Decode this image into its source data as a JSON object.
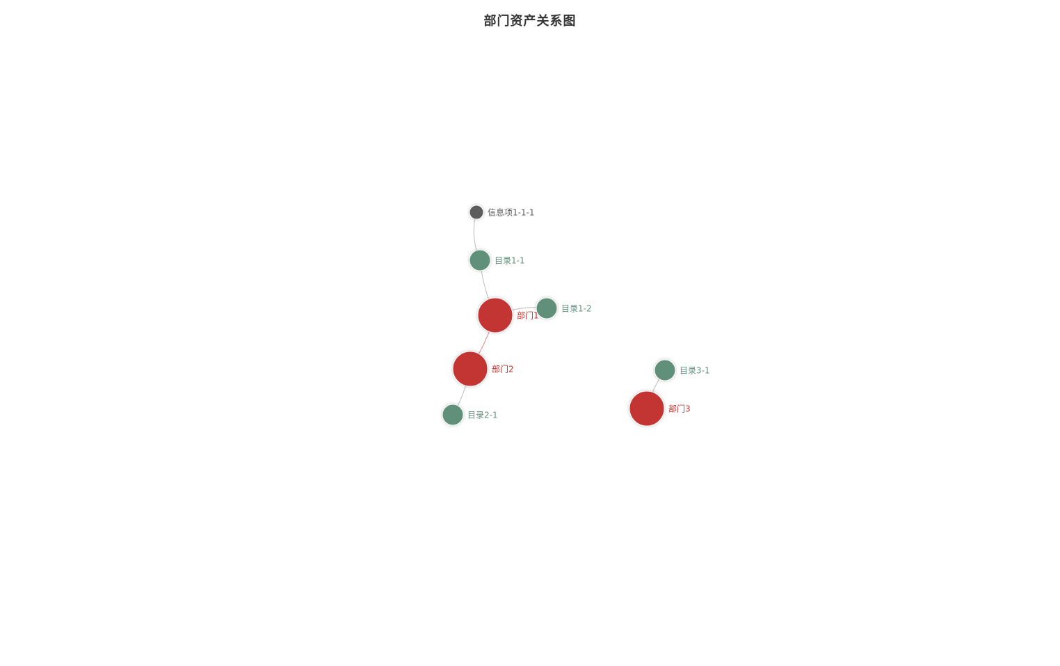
{
  "title": "部门资产关系图",
  "colors": {
    "department": "#c23531",
    "catalog": "#61907a",
    "info": "#5c5c5c",
    "edge_default": "#bbbbbb",
    "edge_department": "#e08584"
  },
  "nodes": [
    {
      "id": "info-1-1-1",
      "label": "信息项1-1-1",
      "category": "info"
    },
    {
      "id": "cat-1-1",
      "label": "目录1-1",
      "category": "catalog"
    },
    {
      "id": "dept-1",
      "label": "部门1",
      "category": "department"
    },
    {
      "id": "cat-1-2",
      "label": "目录1-2",
      "category": "catalog"
    },
    {
      "id": "dept-2",
      "label": "部门2",
      "category": "department"
    },
    {
      "id": "cat-2-1",
      "label": "目录2-1",
      "category": "catalog"
    },
    {
      "id": "cat-3-1",
      "label": "目录3-1",
      "category": "catalog"
    },
    {
      "id": "dept-3",
      "label": "部门3",
      "category": "department"
    }
  ],
  "edges": [
    {
      "source": "info-1-1-1",
      "target": "cat-1-1"
    },
    {
      "source": "cat-1-1",
      "target": "dept-1"
    },
    {
      "source": "dept-1",
      "target": "cat-1-2"
    },
    {
      "source": "dept-1",
      "target": "dept-2"
    },
    {
      "source": "dept-2",
      "target": "cat-2-1"
    },
    {
      "source": "cat-3-1",
      "target": "dept-3"
    }
  ]
}
